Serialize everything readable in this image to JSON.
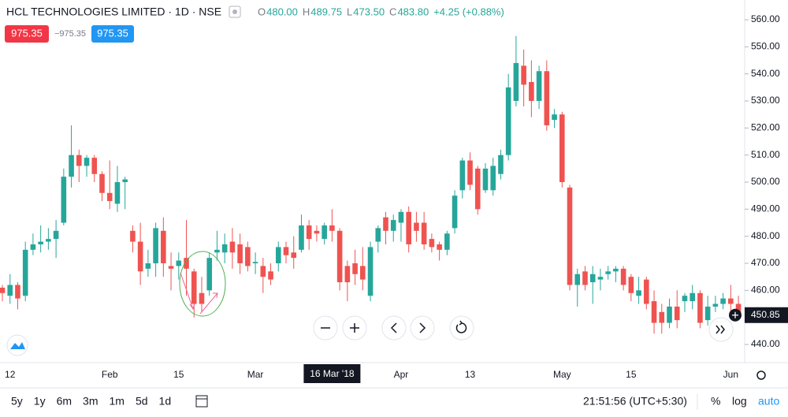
{
  "header": {
    "title": "HCL TECHNOLOGIES LIMITED · 1D · NSE",
    "ohlc": [
      {
        "label": "O",
        "value": "480.00"
      },
      {
        "label": "H",
        "value": "489.75"
      },
      {
        "label": "L",
        "value": "473.50"
      },
      {
        "label": "C",
        "value": "483.80"
      }
    ],
    "change": "+4.25 (+0.88%)",
    "sell": "975.35",
    "spread": "−975.35",
    "buy": "975.35"
  },
  "chart_data": {
    "type": "candlestick",
    "categories": [
      null,
      "12",
      null,
      null,
      null,
      null,
      null,
      null,
      null,
      null,
      null,
      null,
      null,
      null,
      "Feb",
      null,
      null,
      null,
      null,
      null,
      null,
      null,
      null,
      "15",
      null,
      null,
      null,
      null,
      null,
      null,
      null,
      null,
      null,
      "Mar",
      null,
      null,
      null,
      null,
      null,
      null,
      null,
      null,
      null,
      null,
      null,
      null,
      null,
      null,
      null,
      null,
      null,
      null,
      "Apr",
      null,
      null,
      null,
      null,
      null,
      null,
      null,
      null,
      "13",
      null,
      null,
      null,
      null,
      null,
      null,
      null,
      null,
      null,
      null,
      null,
      "May",
      null,
      null,
      null,
      null,
      null,
      null,
      null,
      null,
      "15",
      null,
      null,
      null,
      null,
      null,
      null,
      null,
      null,
      null,
      null,
      null,
      null,
      "Jun",
      null
    ],
    "open": [
      461,
      458,
      462,
      458,
      475,
      477,
      478,
      479,
      485,
      502,
      510,
      506,
      509,
      503,
      496,
      492,
      500,
      482,
      478,
      468,
      470,
      482,
      469,
      469,
      472,
      467,
      459,
      460,
      474,
      474,
      478,
      477,
      476,
      470,
      469,
      467,
      470,
      476,
      474,
      475,
      484,
      482,
      479,
      484,
      482,
      469,
      470,
      469,
      458,
      478,
      487,
      482,
      485,
      489,
      485,
      485,
      479,
      477,
      475,
      483,
      497,
      508,
      505,
      497,
      497,
      503,
      510,
      530,
      543,
      537,
      530,
      541,
      523,
      525,
      498,
      462,
      467,
      463,
      464,
      466,
      467,
      468,
      465,
      458,
      464,
      456,
      452,
      448,
      454,
      456,
      456,
      459,
      449,
      454,
      455,
      457,
      455
    ],
    "high": [
      462,
      466,
      463,
      478,
      481,
      484,
      483,
      486,
      505,
      521,
      512,
      510,
      510,
      504,
      508,
      506,
      502,
      484,
      485,
      475,
      485,
      487,
      474,
      474,
      486,
      468,
      465,
      474,
      482,
      481,
      483,
      481,
      478,
      474,
      472,
      470,
      478,
      478,
      480,
      488,
      486,
      484,
      485,
      490,
      483,
      471,
      475,
      476,
      478,
      484,
      489,
      488,
      490,
      491,
      489,
      489,
      481,
      478,
      482,
      497,
      509,
      511,
      506,
      507,
      509,
      512,
      540,
      554,
      549,
      545,
      543,
      545,
      527,
      526,
      499,
      468,
      469,
      469,
      468,
      469,
      469,
      469,
      466,
      465,
      465,
      460,
      455,
      457,
      460,
      459,
      462,
      460,
      458,
      458,
      459,
      462,
      458
    ],
    "low": [
      456,
      455,
      453,
      456,
      473,
      474,
      475,
      472,
      484,
      498,
      500,
      502,
      500,
      493,
      490,
      489,
      490,
      474,
      462,
      465,
      465,
      465,
      460,
      464,
      458,
      450,
      452,
      458,
      471,
      470,
      468,
      466,
      467,
      466,
      459,
      462,
      467,
      470,
      468,
      474,
      475,
      478,
      477,
      478,
      460,
      456,
      462,
      460,
      456,
      474,
      477,
      478,
      478,
      474,
      478,
      475,
      474,
      471,
      473,
      481,
      494,
      497,
      488,
      496,
      495,
      501,
      508,
      528,
      528,
      524,
      527,
      519,
      520,
      498,
      460,
      454,
      460,
      455,
      460,
      464,
      463,
      460,
      456,
      455,
      453,
      444,
      444,
      446,
      446,
      452,
      453,
      446,
      447,
      452,
      453,
      451,
      449
    ],
    "close": [
      459,
      462,
      457,
      475,
      477,
      478,
      479,
      482,
      502,
      510,
      506,
      509,
      503,
      496,
      493,
      500,
      501,
      478,
      467,
      470,
      483,
      470,
      468,
      471,
      468,
      455,
      455,
      472,
      475,
      477,
      474,
      470,
      469,
      470.5,
      465,
      464,
      476,
      473,
      472,
      484,
      479,
      481,
      484,
      482,
      463,
      463,
      466,
      464,
      476,
      483,
      482,
      486,
      489,
      477,
      482,
      477,
      476,
      475,
      481,
      495,
      508,
      499,
      490,
      505,
      506,
      510,
      535,
      544,
      536,
      530,
      541,
      521,
      525,
      500,
      462,
      466,
      462,
      466,
      465,
      467,
      468,
      462,
      459,
      460,
      455,
      448,
      448,
      454,
      449,
      458,
      459,
      448,
      454,
      455,
      457,
      455,
      451
    ],
    "up_color": "#26a69a",
    "down_color": "#ef5350",
    "ylim": [
      433.3,
      567.3
    ],
    "yticks": [
      {
        "value": 440,
        "label": "440.00"
      },
      {
        "value": 450,
        "label": "450.00"
      },
      {
        "value": 460,
        "label": "460.00"
      },
      {
        "value": 470,
        "label": "470.00"
      },
      {
        "value": 480,
        "label": "480.00"
      },
      {
        "value": 490,
        "label": "490.00"
      },
      {
        "value": 500,
        "label": "500.00"
      },
      {
        "value": 510,
        "label": "510.00"
      },
      {
        "value": 520,
        "label": "520.00"
      },
      {
        "value": 530,
        "label": "530.00"
      },
      {
        "value": 540,
        "label": "540.00"
      },
      {
        "value": 550,
        "label": "550.00"
      },
      {
        "value": 560,
        "label": "560.00"
      }
    ],
    "last_price": 450.85,
    "crosshair": {
      "index": 43,
      "label": "16 Mar '18"
    }
  },
  "toolbar": {
    "ranges": [
      "5y",
      "1y",
      "6m",
      "3m",
      "1m",
      "5d",
      "1d"
    ],
    "time": "21:51:56 (UTC+5:30)",
    "percent": "%",
    "log": "log",
    "auto": "auto"
  }
}
